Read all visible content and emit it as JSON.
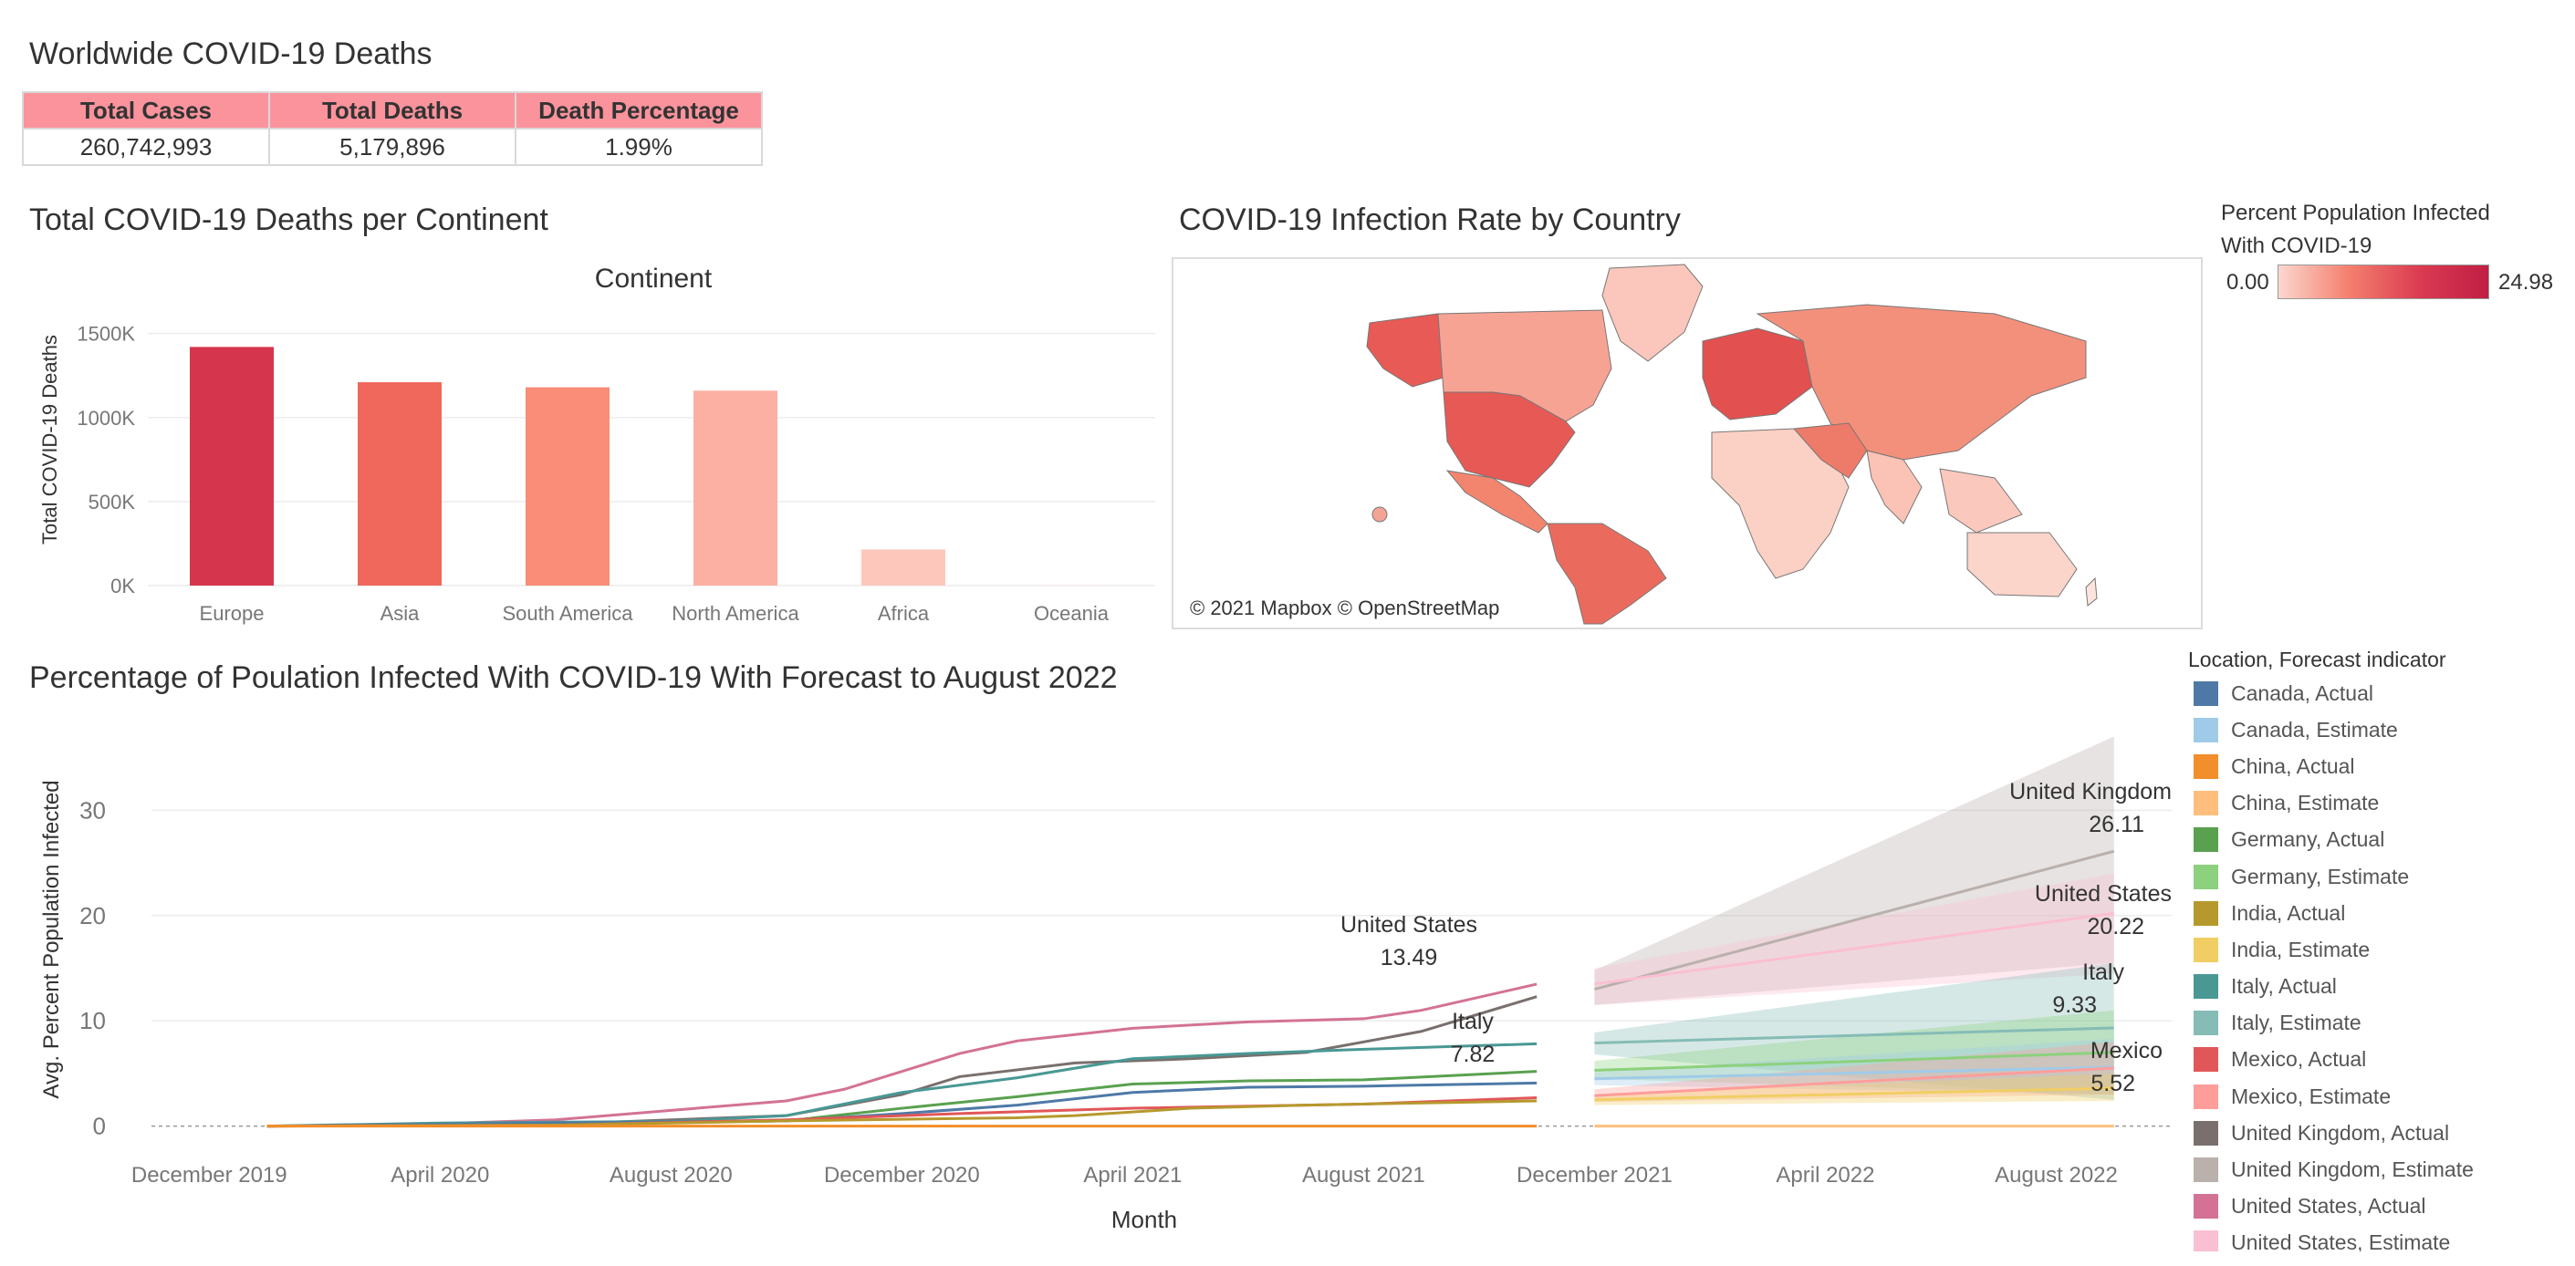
{
  "dashboard": {
    "title": "Worldwide COVID-19 Deaths",
    "kpi": {
      "headers": [
        "Total Cases",
        "Total Deaths",
        "Death Percentage"
      ],
      "values": [
        "260,742,993",
        "5,179,896",
        "1.99%"
      ],
      "header_color": "#fb939c"
    }
  },
  "bar_section": {
    "title": "Total COVID-19 Deaths per Continent"
  },
  "map_section": {
    "title": "COVID-19 Infection Rate by Country",
    "legend_title_line1": "Percent Population Infected",
    "legend_title_line2": "With COVID-19",
    "legend_min": "0.00",
    "legend_max": "24.98",
    "attribution": "© 2021 Mapbox © OpenStreetMap"
  },
  "line_section": {
    "title": "Percentage of Poulation Infected With COVID-19 With Forecast to August 2022",
    "legend_title": "Location, Forecast indicator",
    "legend": [
      {
        "label": "Canada, Actual",
        "color": "#4e79a7"
      },
      {
        "label": "Canada, Estimate",
        "color": "#a0cbe8"
      },
      {
        "label": "China, Actual",
        "color": "#f28e2b"
      },
      {
        "label": "China, Estimate",
        "color": "#ffbe7d"
      },
      {
        "label": "Germany, Actual",
        "color": "#59a14f"
      },
      {
        "label": "Germany, Estimate",
        "color": "#8cd17d"
      },
      {
        "label": "India, Actual",
        "color": "#b6992d"
      },
      {
        "label": "India, Estimate",
        "color": "#f1ce63"
      },
      {
        "label": "Italy, Actual",
        "color": "#499894"
      },
      {
        "label": "Italy, Estimate",
        "color": "#86bcb6"
      },
      {
        "label": "Mexico, Actual",
        "color": "#e15759"
      },
      {
        "label": "Mexico, Estimate",
        "color": "#ff9d9a"
      },
      {
        "label": "United Kingdom, Actual",
        "color": "#79706e"
      },
      {
        "label": "United Kingdom, Estimate",
        "color": "#bab0ac"
      },
      {
        "label": "United States, Actual",
        "color": "#d37295"
      },
      {
        "label": "United States, Estimate",
        "color": "#fabfd2"
      }
    ]
  },
  "chart_data": [
    {
      "type": "bar",
      "title": "Continent",
      "categories": [
        "Europe",
        "Asia",
        "South America",
        "North America",
        "Africa",
        "Oceania"
      ],
      "values": [
        1420000,
        1210000,
        1180000,
        1160000,
        215000,
        2000
      ],
      "colors": [
        "#d6364d",
        "#f0675c",
        "#f98d78",
        "#fbb0a3",
        "#fdc7bc",
        "#fde3dc"
      ],
      "ylabel": "Total COVID-19 Deaths",
      "ylim": [
        0,
        1650000
      ],
      "yticks": [
        0,
        500000,
        1000000,
        1500000
      ],
      "ytick_labels": [
        "0K",
        "500K",
        "1000K",
        "1500K"
      ],
      "grid": true
    },
    {
      "type": "line",
      "xlabel": "Month",
      "ylabel": "Avg. Percent Population Infected",
      "ylim": [
        -1.5,
        38
      ],
      "yticks": [
        0,
        10,
        20,
        30
      ],
      "x_range": [
        "2019-11",
        "2022-10"
      ],
      "x_ticks": [
        "2019-12",
        "2020-04",
        "2020-08",
        "2020-12",
        "2021-04",
        "2021-08",
        "2021-12",
        "2022-04",
        "2022-08"
      ],
      "x_tick_labels": [
        "December 2019",
        "April 2020",
        "August 2020",
        "December 2020",
        "April 2021",
        "August 2021",
        "December 2021",
        "April 2022",
        "August 2022"
      ],
      "grid": true,
      "series": [
        {
          "name": "United Kingdom, Actual",
          "color": "#79706e",
          "x": [
            "2020-01",
            "2020-04",
            "2020-07",
            "2020-10",
            "2020-12",
            "2021-01",
            "2021-03",
            "2021-05",
            "2021-07",
            "2021-09",
            "2021-11"
          ],
          "y": [
            0,
            0.1,
            0.4,
            1.0,
            3.0,
            4.7,
            6.0,
            6.4,
            7.0,
            9.0,
            12.3
          ]
        },
        {
          "name": "United Kingdom, Estimate",
          "color": "#bab0ac",
          "x": [
            "2021-12",
            "2022-09"
          ],
          "y": [
            13.0,
            26.11
          ],
          "lo": [
            11.5,
            15.5
          ],
          "hi": [
            14.8,
            37.0
          ]
        },
        {
          "name": "United States, Actual",
          "color": "#d37295",
          "x": [
            "2020-01",
            "2020-03",
            "2020-06",
            "2020-08",
            "2020-10",
            "2020-11",
            "2020-12",
            "2021-01",
            "2021-02",
            "2021-04",
            "2021-06",
            "2021-08",
            "2021-09",
            "2021-11"
          ],
          "y": [
            0,
            0.05,
            0.6,
            1.5,
            2.4,
            3.5,
            5.2,
            6.9,
            8.1,
            9.3,
            9.9,
            10.2,
            11.0,
            13.49
          ]
        },
        {
          "name": "United States, Estimate",
          "color": "#fabfd2",
          "x": [
            "2021-12",
            "2022-09"
          ],
          "y": [
            13.5,
            20.22
          ],
          "lo": [
            11.5,
            14.5
          ],
          "hi": [
            15.0,
            24.0
          ]
        },
        {
          "name": "Italy, Actual",
          "color": "#499894",
          "x": [
            "2020-01",
            "2020-04",
            "2020-08",
            "2020-10",
            "2020-12",
            "2021-02",
            "2021-04",
            "2021-06",
            "2021-08",
            "2021-11"
          ],
          "y": [
            0,
            0.3,
            0.45,
            1.0,
            3.2,
            4.6,
            6.4,
            6.9,
            7.3,
            7.82
          ]
        },
        {
          "name": "Italy, Estimate",
          "color": "#86bcb6",
          "x": [
            "2021-12",
            "2022-09"
          ],
          "y": [
            7.9,
            9.33
          ],
          "lo": [
            6.8,
            2.5
          ],
          "hi": [
            8.9,
            15.5
          ]
        },
        {
          "name": "Germany, Actual",
          "color": "#59a14f",
          "x": [
            "2020-01",
            "2020-06",
            "2020-10",
            "2020-12",
            "2021-02",
            "2021-04",
            "2021-06",
            "2021-08",
            "2021-11"
          ],
          "y": [
            0,
            0.2,
            0.5,
            1.7,
            2.8,
            4.0,
            4.3,
            4.4,
            5.2
          ]
        },
        {
          "name": "Germany, Estimate",
          "color": "#8cd17d",
          "x": [
            "2021-12",
            "2022-09"
          ],
          "y": [
            5.3,
            7.0
          ],
          "lo": [
            4.5,
            3.0
          ],
          "hi": [
            6.2,
            11.0
          ]
        },
        {
          "name": "Canada, Actual",
          "color": "#4e79a7",
          "x": [
            "2020-01",
            "2020-06",
            "2020-10",
            "2020-12",
            "2021-02",
            "2021-04",
            "2021-06",
            "2021-08",
            "2021-11"
          ],
          "y": [
            0,
            0.3,
            0.5,
            1.2,
            2.0,
            3.2,
            3.7,
            3.8,
            4.1
          ]
        },
        {
          "name": "Canada, Estimate",
          "color": "#a0cbe8",
          "x": [
            "2021-12",
            "2022-09"
          ],
          "y": [
            4.5,
            5.6
          ],
          "lo": [
            3.9,
            3.0
          ],
          "hi": [
            5.1,
            8.3
          ]
        },
        {
          "name": "Mexico, Actual",
          "color": "#e15759",
          "x": [
            "2020-01",
            "2020-06",
            "2020-10",
            "2021-01",
            "2021-04",
            "2021-08",
            "2021-11"
          ],
          "y": [
            0,
            0.1,
            0.6,
            1.2,
            1.7,
            2.1,
            2.7
          ]
        },
        {
          "name": "Mexico, Estimate",
          "color": "#ff9d9a",
          "x": [
            "2021-12",
            "2022-09"
          ],
          "y": [
            2.9,
            5.52
          ],
          "lo": [
            2.3,
            3.0
          ],
          "hi": [
            3.5,
            8.0
          ]
        },
        {
          "name": "India, Actual",
          "color": "#b6992d",
          "x": [
            "2020-01",
            "2020-06",
            "2020-10",
            "2021-02",
            "2021-03",
            "2021-05",
            "2021-07",
            "2021-11"
          ],
          "y": [
            0,
            0.1,
            0.5,
            0.8,
            1.0,
            1.7,
            2.0,
            2.4
          ]
        },
        {
          "name": "India, Estimate",
          "color": "#f1ce63",
          "x": [
            "2021-12",
            "2022-09"
          ],
          "y": [
            2.5,
            3.6
          ],
          "lo": [
            2.0,
            2.4
          ],
          "hi": [
            3.0,
            5.0
          ]
        },
        {
          "name": "China, Actual",
          "color": "#f28e2b",
          "x": [
            "2020-01",
            "2021-11"
          ],
          "y": [
            0,
            0.01
          ]
        },
        {
          "name": "China, Estimate",
          "color": "#ffbe7d",
          "x": [
            "2021-12",
            "2022-09"
          ],
          "y": [
            0.01,
            0.01
          ]
        }
      ],
      "annotations": [
        {
          "label": "United States",
          "value": "13.49"
        },
        {
          "label": "Italy",
          "value": "7.82"
        },
        {
          "label": "United Kingdom",
          "value": "26.11"
        },
        {
          "label": "United States",
          "value": "20.22"
        },
        {
          "label": "Italy",
          "value": "9.33"
        },
        {
          "label": "Mexico",
          "value": "5.52"
        }
      ]
    }
  ]
}
